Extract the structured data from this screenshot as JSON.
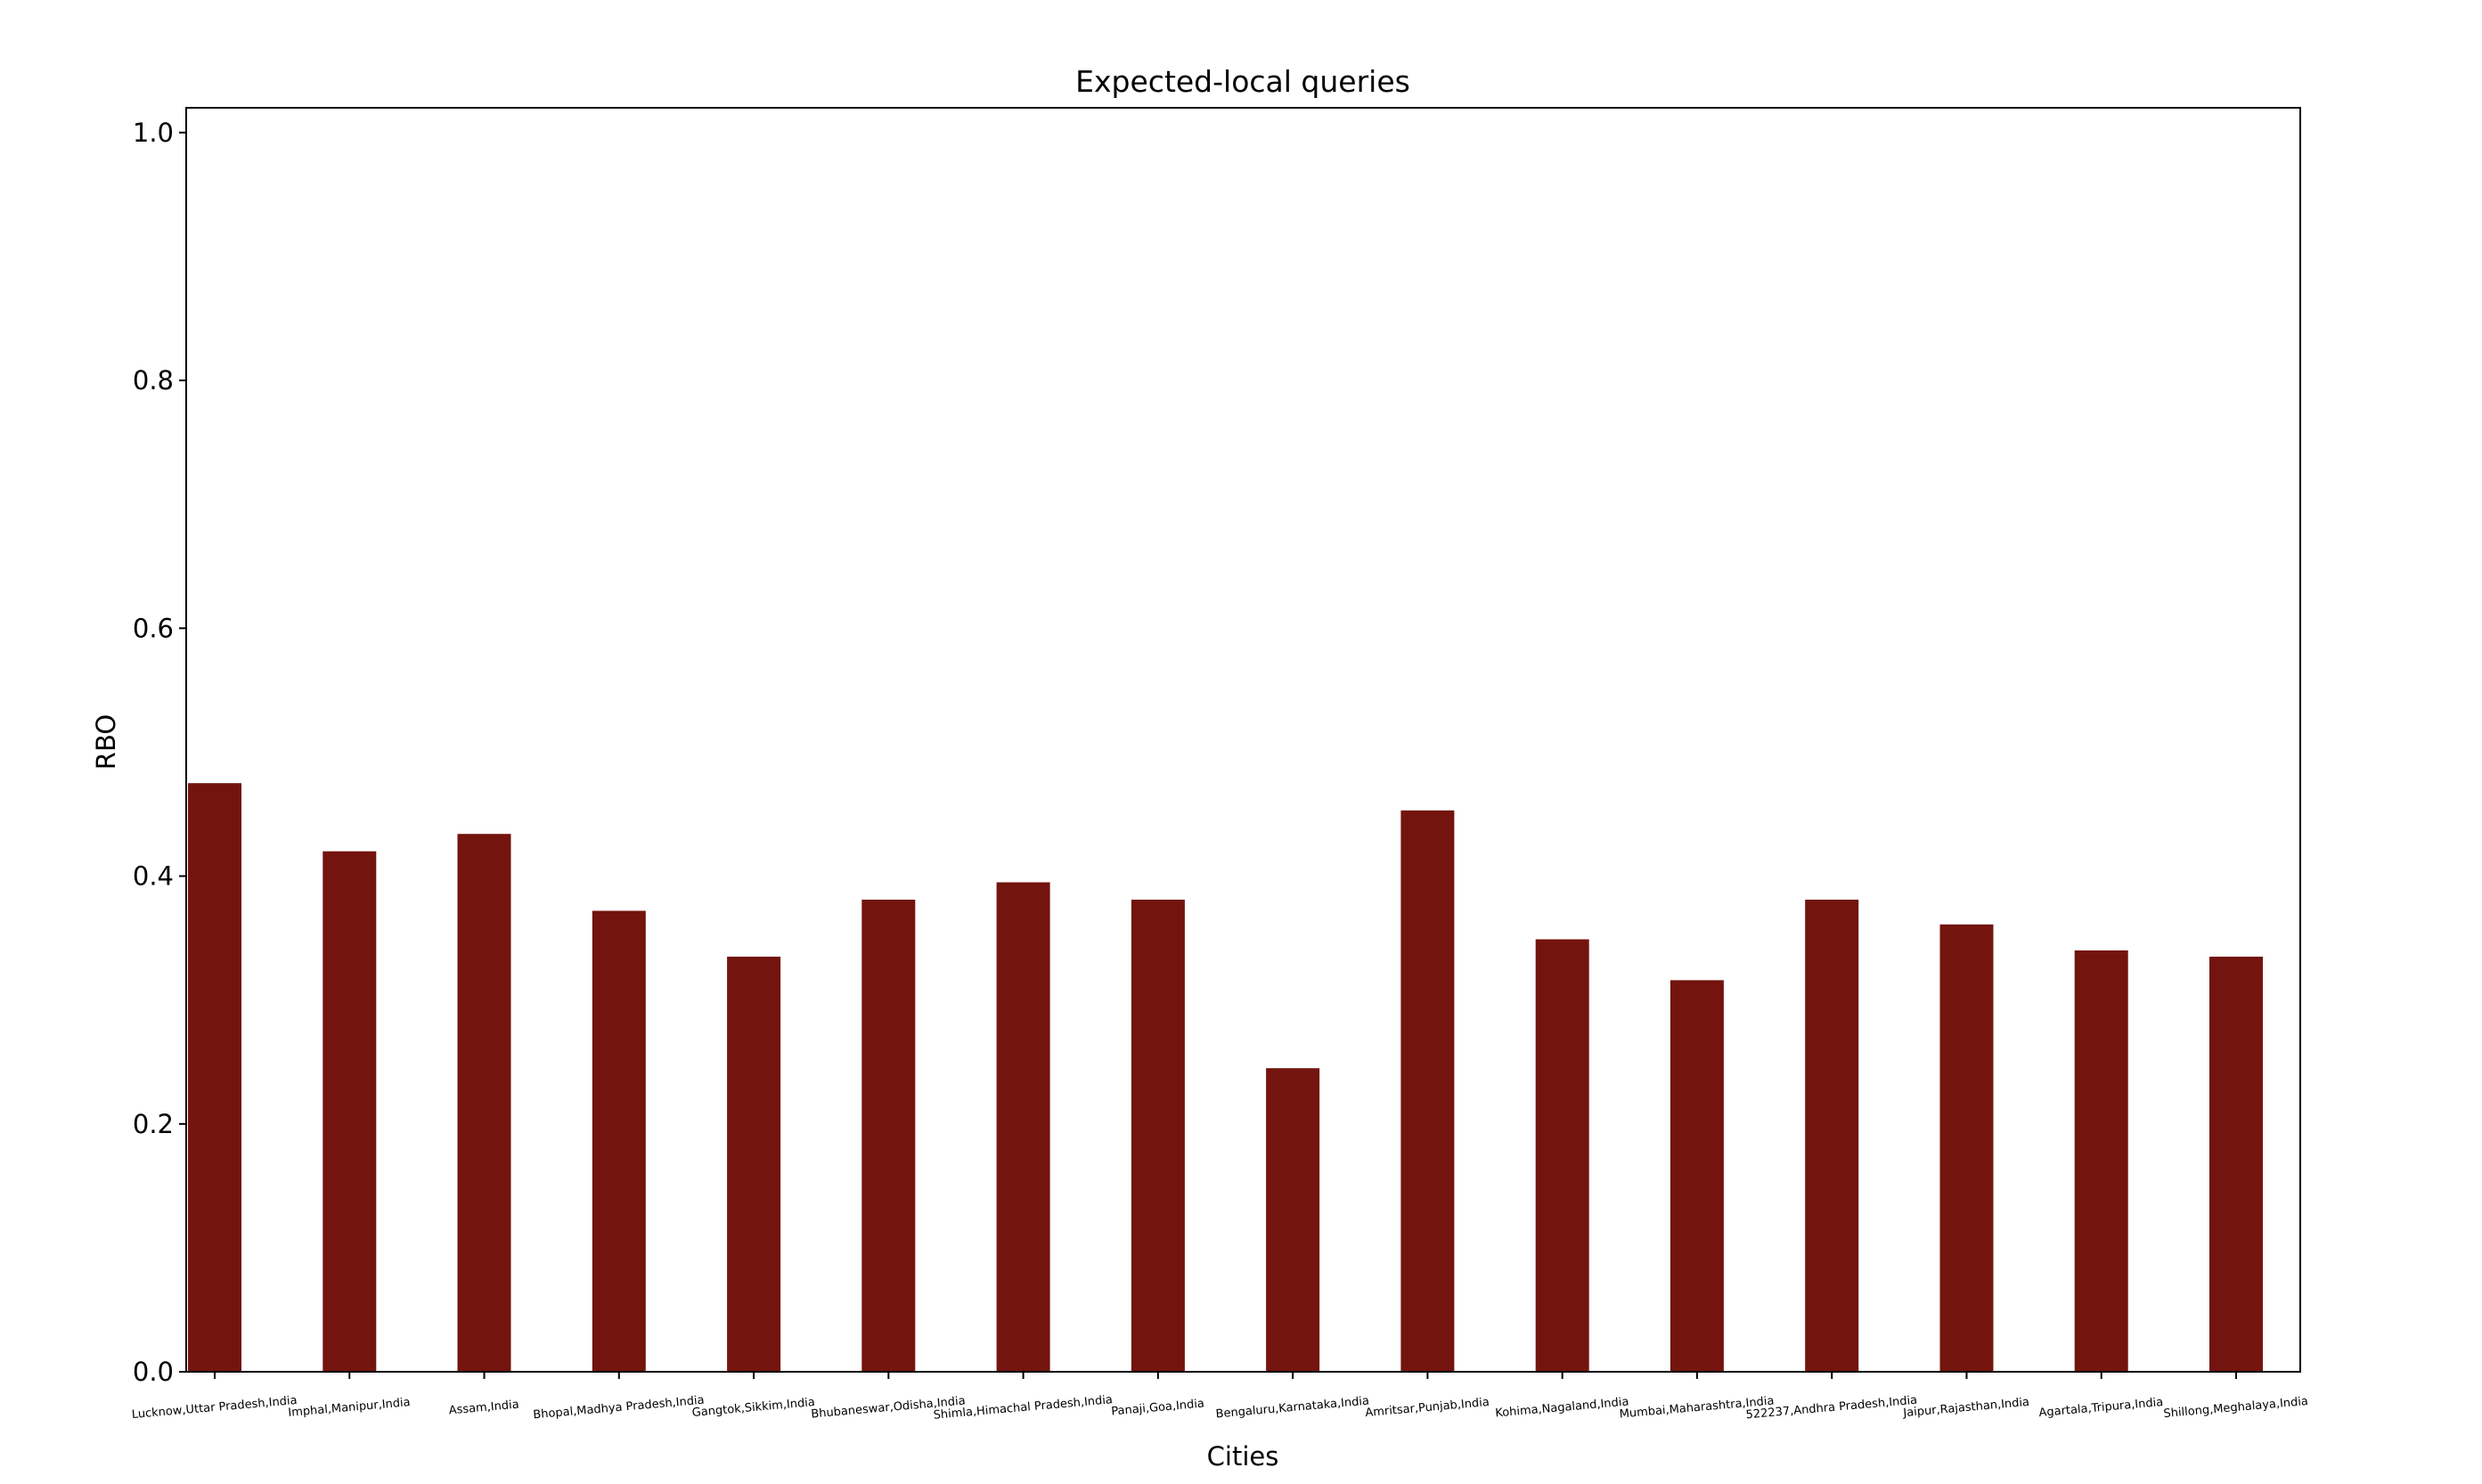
{
  "chart_data": {
    "type": "bar",
    "title": "Expected-local queries",
    "xlabel": "Cities",
    "ylabel": "RBO",
    "ylim": [
      0,
      1.02
    ],
    "yticks": [
      "0.0",
      "0.2",
      "0.4",
      "0.6",
      "0.8",
      "1.0"
    ],
    "grid": false,
    "legend": "none",
    "bar_color": "#73140e",
    "categories": [
      "Lucknow,Uttar Pradesh,India",
      "Imphal,Manipur,India",
      "Assam,India",
      "Bhopal,Madhya Pradesh,India",
      "Gangtok,Sikkim,India",
      "Bhubaneswar,Odisha,India",
      "Shimla,Himachal Pradesh,India",
      "Panaji,Goa,India",
      "Bengaluru,Karnataka,India",
      "Amritsar,Punjab,India",
      "Kohima,Nagaland,India",
      "Mumbai,Maharashtra,India",
      "522237,Andhra Pradesh,India",
      "Jaipur,Rajasthan,India",
      "Agartala,Tripura,India",
      "Shillong,Meghalaya,India"
    ],
    "values": [
      0.475,
      0.42,
      0.434,
      0.372,
      0.335,
      0.381,
      0.395,
      0.381,
      0.245,
      0.453,
      0.349,
      0.316,
      0.381,
      0.361,
      0.34,
      0.335
    ]
  }
}
